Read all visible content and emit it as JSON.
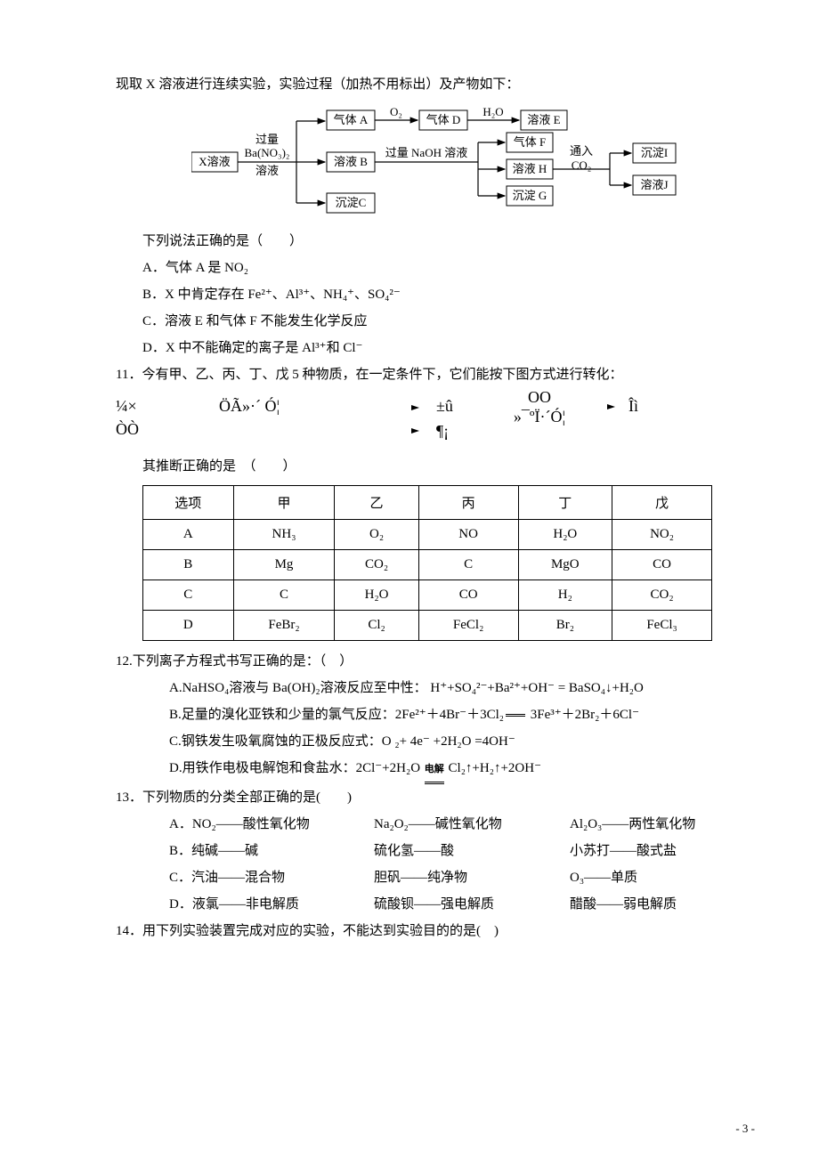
{
  "intro_line": "现取 X 溶液进行连续实验，实验过程（加热不用标出）及产物如下：",
  "diagram1": {
    "nodes": {
      "X": "X溶液",
      "A": "气体 A",
      "D": "气体 D",
      "E": "溶液 E",
      "B": "溶液 B",
      "C": "沉淀C",
      "F": "气体 F",
      "G": "沉淀 G",
      "H": "溶液 H",
      "I": "沉淀I",
      "J": "溶液J"
    },
    "edge_labels": {
      "x_split_top": "过量",
      "x_split_mid": "Ba(NO₃)₂",
      "x_split_bot": "溶液",
      "a_d": "O₂",
      "d_e": "H₂O",
      "b_split": "过量 NaOH 溶液",
      "to_ij_top": "通入",
      "to_ij_bot": "CO₂"
    }
  },
  "q10": {
    "stem": "下列说法正确的是（　　）",
    "A": "A．气体 A 是 NO₂",
    "B": "B．X 中肯定存在 Fe²⁺、Al³⁺、NH₄⁺、SO₄²⁻",
    "C": "C．溶液 E 和气体 F 不能发生化学反应",
    "D": "D．X 中不能确定的离子是 Al³⁺和 Cl⁻"
  },
  "q11": {
    "stem": "11．今有甲、乙、丙、丁、戊 5 种物质，在一定条件下，它们能按下图方式进行转化：",
    "corr_left": "¼×",
    "corr_left2": "ÒÒ",
    "corr_mid": "ÖÃ»·´ Ó¦",
    "corr_r1a": "±û",
    "corr_r1b": "ÒÒ",
    "corr_r1c": "Îì",
    "corr_r1mid": "»¯ºÏ·´Ó¦",
    "corr_r2": "¶¡",
    "after": "其推断正确的是　（　　）",
    "headers": [
      "选项",
      "甲",
      "乙",
      "丙",
      "丁",
      "戊"
    ],
    "rows": [
      [
        "A",
        "NH₃",
        "O₂",
        "NO",
        "H₂O",
        "NO₂"
      ],
      [
        "B",
        "Mg",
        "CO₂",
        "C",
        "MgO",
        "CO"
      ],
      [
        "C",
        "C",
        "H₂O",
        "CO",
        "H₂",
        "CO₂"
      ],
      [
        "D",
        "FeBr₂",
        "Cl₂",
        "FeCl₂",
        "Br₂",
        "FeCl₃"
      ]
    ]
  },
  "q12": {
    "stem": "12.下列离子方程式书写正确的是：（　）",
    "A": "A.NaHSO₄溶液与 Ba(OH)₂溶液反应至中性： H⁺+SO₄²⁻+Ba²⁺+OH⁻ = BaSO₄↓+H₂O",
    "B": "B.足量的溴化亚铁和少量的氯气反应：2Fe²⁺＋4Br⁻＋3Cl₂",
    "B_tail": " 3Fe³⁺＋2Br₂＋6Cl⁻",
    "C": "C.钢铁发生吸氧腐蚀的正极反应式：O ₂+ 4e⁻ +2H₂O =4OH⁻",
    "D_head": "D.用铁作电极电解饱和食盐水：2Cl⁻+2H₂O",
    "D_top": "电解",
    "D_tail": "Cl₂↑+H₂↑+2OH⁻"
  },
  "q13": {
    "stem": "13．下列物质的分类全部正确的是(　　)",
    "rows": [
      [
        "A．NO₂——酸性氧化物",
        "Na₂O₂——碱性氧化物",
        "Al₂O₃——两性氧化物"
      ],
      [
        "B．纯碱——碱",
        "硫化氢——酸",
        "小苏打——酸式盐"
      ],
      [
        "C．汽油——混合物",
        "胆矾——纯净物",
        "O₃——单质"
      ],
      [
        "D．液氯——非电解质",
        "硫酸钡——强电解质",
        "醋酸——弱电解质"
      ]
    ]
  },
  "q14": {
    "stem": "14．用下列实验装置完成对应的实验，不能达到实验目的的是(　)"
  },
  "page_number": "- 3 -"
}
